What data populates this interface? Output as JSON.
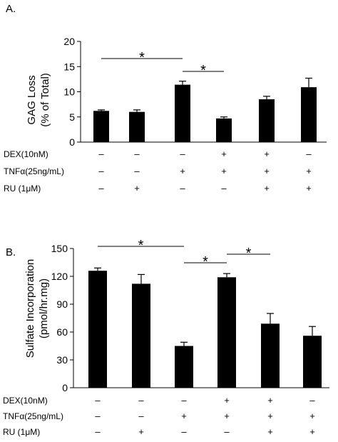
{
  "chart_data": [
    {
      "type": "bar",
      "panel": "A.",
      "ylabel": [
        "GAG Loss",
        "(% of Total)"
      ],
      "ylim": [
        0,
        20
      ],
      "yticks": [
        "0",
        "5",
        "10",
        "15",
        "20"
      ],
      "categories": [
        "1",
        "2",
        "3",
        "4",
        "5",
        "6"
      ],
      "values": [
        6.2,
        6.0,
        11.4,
        4.7,
        8.5,
        10.9
      ],
      "errors": [
        0.2,
        0.4,
        0.7,
        0.3,
        0.6,
        1.8
      ],
      "significance": [
        {
          "from": 0,
          "to": 2,
          "label": "*"
        },
        {
          "from": 2,
          "to": 3,
          "label": "*"
        }
      ],
      "conditions": [
        {
          "label": "DEX(10nM)",
          "signs": [
            "–",
            "–",
            "–",
            "+",
            "+",
            "–"
          ]
        },
        {
          "label": "TNFα(25ng/mL)",
          "signs": [
            "–",
            "–",
            "+",
            "+",
            "+",
            "+"
          ]
        },
        {
          "label": "RU (1μM)",
          "signs": [
            "–",
            "+",
            "–",
            "–",
            "+",
            "+"
          ]
        }
      ]
    },
    {
      "type": "bar",
      "panel": "B.",
      "ylabel": [
        "Sulfate Incorporation",
        "(pmol/hr.mg)"
      ],
      "ylim": [
        0,
        150
      ],
      "yticks": [
        "0",
        "30",
        "60",
        "90",
        "120",
        "150"
      ],
      "categories": [
        "1",
        "2",
        "3",
        "4",
        "5",
        "6"
      ],
      "values": [
        126,
        112,
        45,
        119,
        69,
        56
      ],
      "errors": [
        3,
        10,
        4,
        4,
        11,
        10
      ],
      "significance": [
        {
          "from": 0,
          "to": 2,
          "label": "*"
        },
        {
          "from": 2,
          "to": 3,
          "label": "*"
        },
        {
          "from": 3,
          "to": 4,
          "label": "*"
        }
      ],
      "conditions": [
        {
          "label": "DEX(10nM)",
          "signs": [
            "–",
            "–",
            "–",
            "+",
            "+",
            "–"
          ]
        },
        {
          "label": "TNFα(25ng/mL)",
          "signs": [
            "–",
            "–",
            "+",
            "+",
            "+",
            "+"
          ]
        },
        {
          "label": "RU (1μM)",
          "signs": [
            "–",
            "+",
            "–",
            "–",
            "+",
            "+"
          ]
        }
      ]
    }
  ]
}
